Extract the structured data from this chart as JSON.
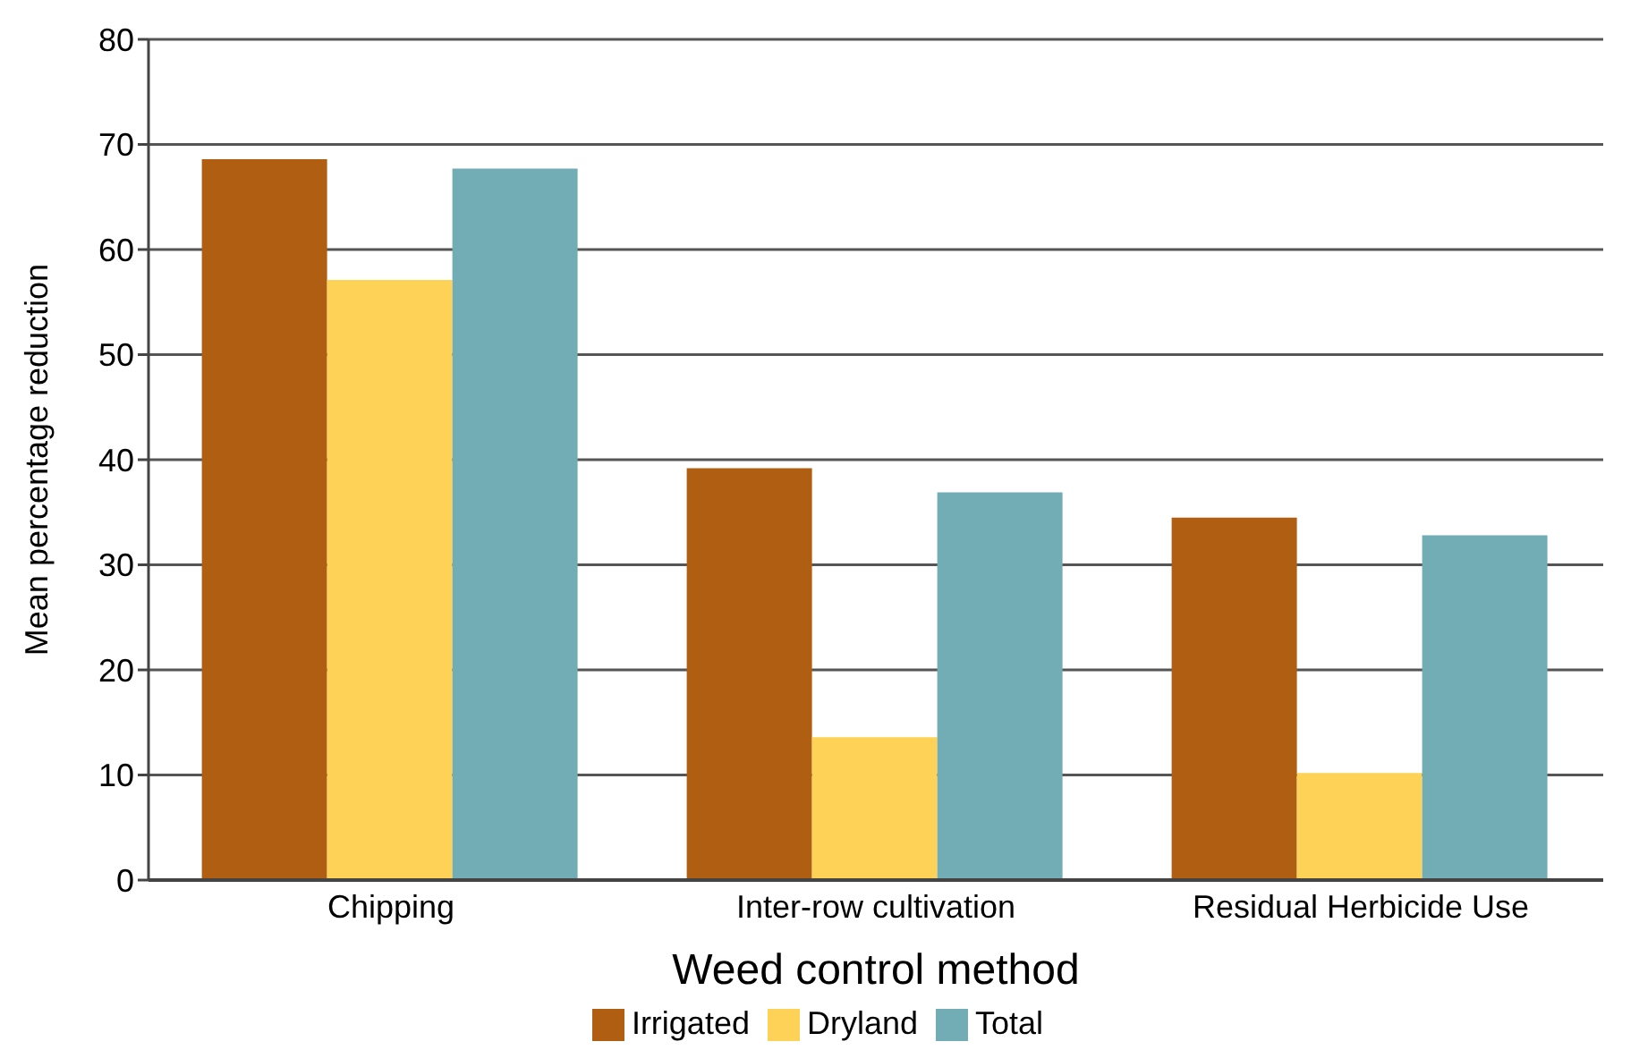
{
  "chart_data": {
    "type": "bar",
    "xlabel": "Weed control method",
    "ylabel": "Mean percentage reduction",
    "categories": [
      "Chipping",
      "Inter-row cultivation",
      "Residual Herbicide Use"
    ],
    "series": [
      {
        "name": "Irrigated",
        "color": "#b05f12",
        "values": [
          68.6,
          39.2,
          34.5
        ]
      },
      {
        "name": "Dryland",
        "color": "#fdd257",
        "values": [
          57.1,
          13.6,
          10.2
        ]
      },
      {
        "name": "Total",
        "color": "#72adb5",
        "values": [
          67.7,
          36.9,
          32.8
        ]
      }
    ],
    "ylim": [
      0,
      80
    ],
    "yticks": [
      0,
      10,
      20,
      30,
      40,
      50,
      60,
      70,
      80
    ],
    "grid": "y",
    "legend": "bottom"
  }
}
